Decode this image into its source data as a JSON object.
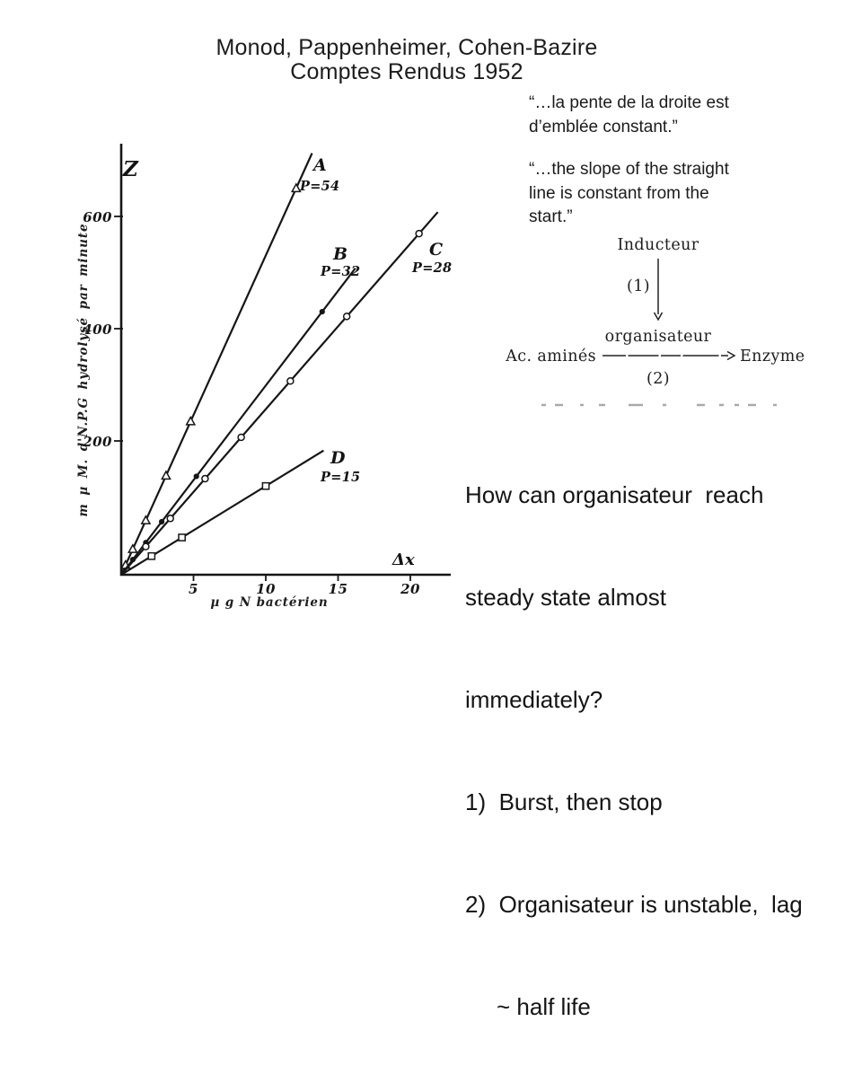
{
  "slide": {
    "title_line1": "Monod, Pappenheimer, Cohen-Bazire",
    "title_line2": "Comptes Rendus 1952"
  },
  "quote": {
    "french_lines": [
      "“…la pente de la droite est",
      "d’emblée constant.”"
    ],
    "english_lines": [
      "“…the slope of the straight",
      "line is constant from the",
      "start.”"
    ]
  },
  "notes": {
    "lines": [
      "How can organisateur  reach",
      "steady state almost",
      "immediately?",
      "1)  Burst, then stop",
      "2)  Organisateur is unstable,  lag",
      "~ half life"
    ]
  },
  "diagram": {
    "inducteur": "Inducteur",
    "step1": "(1)",
    "organisateur": "organisateur",
    "ac_amines": "Ac. aminés",
    "enzyme": "Enzyme",
    "step2": "(2)"
  },
  "colors": {
    "ink": "#161616",
    "background": "#ffffff"
  },
  "chart_data": {
    "type": "line",
    "title": "",
    "xlabel": "µ g N bactérien",
    "ylabel": "m µ M. d'N.P.G hydrolysé par minute",
    "y_axis_top_label": "Z",
    "x_axis_right_label": "Δx",
    "xlim": [
      0,
      22.5
    ],
    "ylim": [
      0,
      760
    ],
    "xticks": [
      5,
      10,
      15,
      20
    ],
    "yticks": [
      200,
      400,
      600
    ],
    "grid": false,
    "legend_position": "inline-labels",
    "series": [
      {
        "name": "A",
        "p_label": "P=54",
        "slope": 54,
        "x_end": 13.2,
        "marker": "triangle-open",
        "marker_x": [
          0.3,
          0.8,
          1.7,
          3.1,
          4.8,
          12.1
        ]
      },
      {
        "name": "B",
        "p_label": "P=32",
        "slope": 32,
        "x_end": 16.2,
        "marker": "circle-filled",
        "marker_x": [
          0.8,
          1.7,
          2.8,
          5.2,
          13.9
        ]
      },
      {
        "name": "C",
        "p_label": "P=28",
        "slope": 28,
        "x_end": 21.9,
        "marker": "circle-open",
        "marker_x": [
          1.7,
          3.4,
          5.8,
          8.3,
          11.7,
          15.6,
          20.6
        ]
      },
      {
        "name": "D",
        "p_label": "P=15",
        "slope": 15,
        "x_end": 14.0,
        "marker": "square-open",
        "marker_x": [
          2.1,
          4.2,
          10.0
        ]
      }
    ]
  }
}
